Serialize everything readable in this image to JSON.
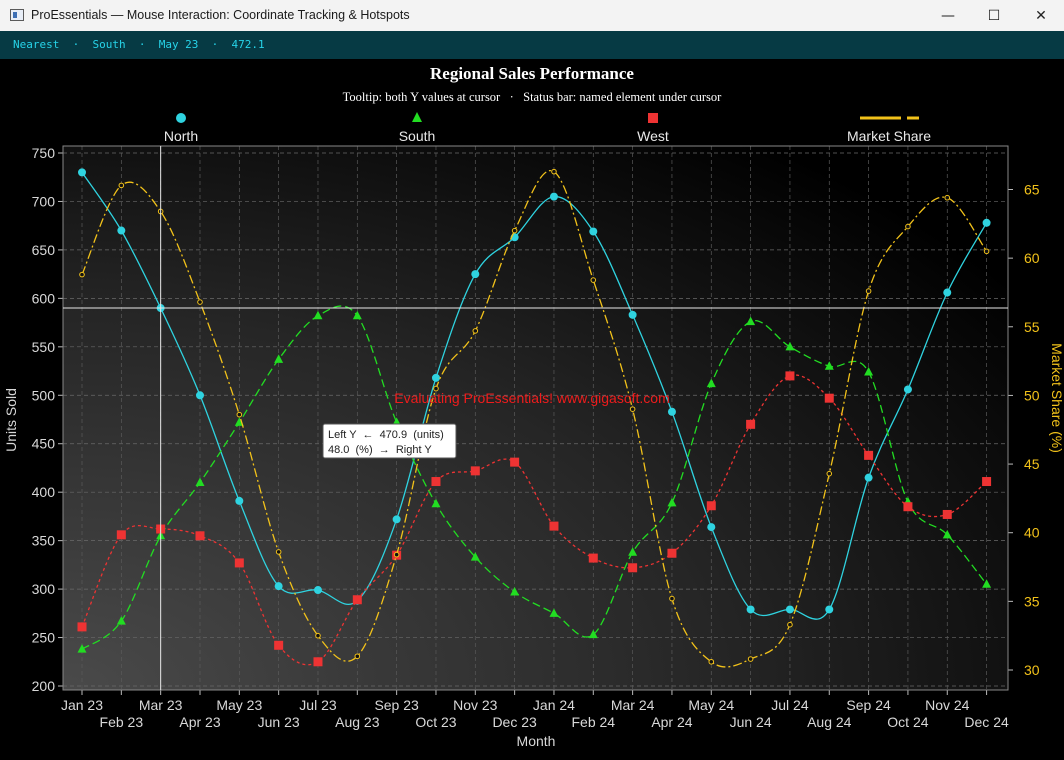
{
  "window": {
    "title": "ProEssentials — Mouse Interaction: Coordinate Tracking & Hotspots",
    "minimize_glyph": "—",
    "maximize_glyph": "☐",
    "close_glyph": "✕"
  },
  "status_bar": {
    "text": "Nearest  ·  South  ·  May 23  ·  472.1"
  },
  "tooltip": {
    "line1": "Left Y  ←  470.9  (units)",
    "line2": "48.0  (%)  →  Right Y"
  },
  "watermark": "Evaluating ProEssentials! www.gigasoft.com",
  "chart_data": {
    "type": "line",
    "title": "Regional Sales Performance",
    "subtitle": "Tooltip: both Y values at cursor   ·   Status bar: named element under cursor",
    "xlabel": "Month",
    "ylabel": "Units Sold",
    "y2label": "Market Share (%)",
    "ylim": [
      200,
      750
    ],
    "y2lim": [
      30,
      65
    ],
    "yticks": [
      200,
      250,
      300,
      350,
      400,
      450,
      500,
      550,
      600,
      650,
      700,
      750
    ],
    "y2ticks": [
      30,
      35,
      40,
      45,
      50,
      55,
      60,
      65
    ],
    "grid": true,
    "legend_position": "top",
    "categories": [
      "Jan 23",
      "Feb 23",
      "Mar 23",
      "Apr 23",
      "May 23",
      "Jun 23",
      "Jul 23",
      "Aug 23",
      "Sep 23",
      "Oct 23",
      "Nov 23",
      "Dec 23",
      "Jan 24",
      "Feb 24",
      "Mar 24",
      "Apr 24",
      "May 24",
      "Jun 24",
      "Jul 24",
      "Aug 24",
      "Sep 24",
      "Oct 24",
      "Nov 24",
      "Dec 24"
    ],
    "crosshair": {
      "category": "Mar 23",
      "y": 590
    },
    "series": [
      {
        "name": "North",
        "axis": "left",
        "color": "#2fd3e0",
        "marker": "circle",
        "dash": "",
        "values": [
          730,
          670,
          590,
          500,
          391,
          303,
          299,
          288,
          372,
          518,
          625,
          663,
          705,
          669,
          583,
          483,
          364,
          279,
          279,
          279,
          415,
          506,
          606,
          678
        ]
      },
      {
        "name": "South",
        "axis": "left",
        "color": "#22dd22",
        "marker": "triangle",
        "dash": "8,4",
        "values": [
          238,
          267,
          355,
          410,
          472,
          537,
          582,
          582,
          472,
          388,
          333,
          297,
          275,
          253,
          338,
          389,
          512,
          576,
          550,
          530,
          524,
          390,
          356,
          305
        ]
      },
      {
        "name": "West",
        "axis": "left",
        "color": "#ee3333",
        "marker": "square",
        "dash": "3,3",
        "values": [
          261,
          356,
          362,
          355,
          327,
          242,
          225,
          289,
          335,
          411,
          422,
          431,
          365,
          332,
          322,
          337,
          386,
          470,
          520,
          497,
          438,
          385,
          377,
          411
        ]
      },
      {
        "name": "Market Share",
        "axis": "right",
        "color": "#f2c21a",
        "marker": "dot",
        "dash": "9,3,2,3",
        "values": [
          58.8,
          65.3,
          63.4,
          56.8,
          48.6,
          38.6,
          32.5,
          31.0,
          38.4,
          50.5,
          54.7,
          62.0,
          66.3,
          58.4,
          49.0,
          35.2,
          30.6,
          30.8,
          33.3,
          44.3,
          57.6,
          62.3,
          64.4,
          60.5
        ]
      }
    ]
  }
}
